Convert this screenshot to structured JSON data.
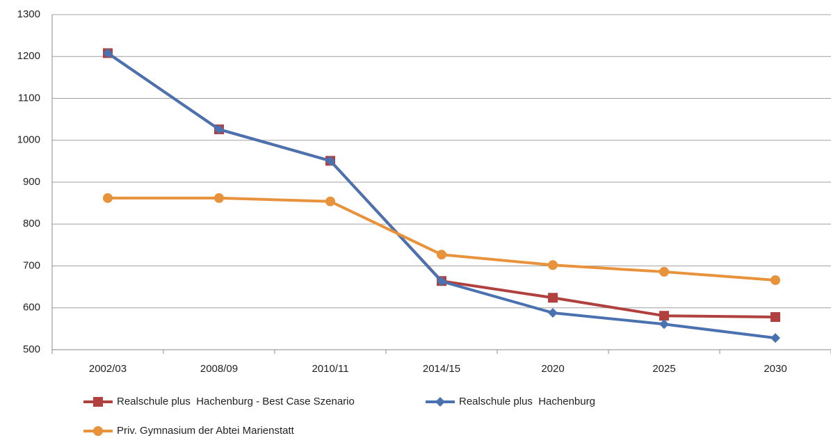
{
  "chart_data": {
    "type": "line",
    "categories": [
      "2002/03",
      "2008/09",
      "2010/11",
      "2014/15",
      "2020",
      "2025",
      "2030"
    ],
    "series": [
      {
        "name": "Realschule plus  Hachenburg - Best Case Szenario",
        "color": "#b0413e",
        "marker": "square",
        "values": [
          1208,
          1026,
          951,
          664,
          624,
          581,
          578
        ]
      },
      {
        "name": "Realschule plus  Hachenburg",
        "color": "#4a72b0",
        "marker": "diamond",
        "values": [
          1208,
          1026,
          951,
          663,
          588,
          561,
          528
        ]
      },
      {
        "name": "Priv. Gymnasium der Abtei Marienstatt",
        "color": "#e8923b",
        "marker": "circle",
        "values": [
          862,
          862,
          854,
          727,
          702,
          686,
          666
        ]
      }
    ],
    "ylim": [
      500,
      1300
    ],
    "yticks": [
      500,
      600,
      700,
      800,
      900,
      1000,
      1100,
      1200,
      1300
    ],
    "grid": true,
    "legend": "bottom"
  }
}
